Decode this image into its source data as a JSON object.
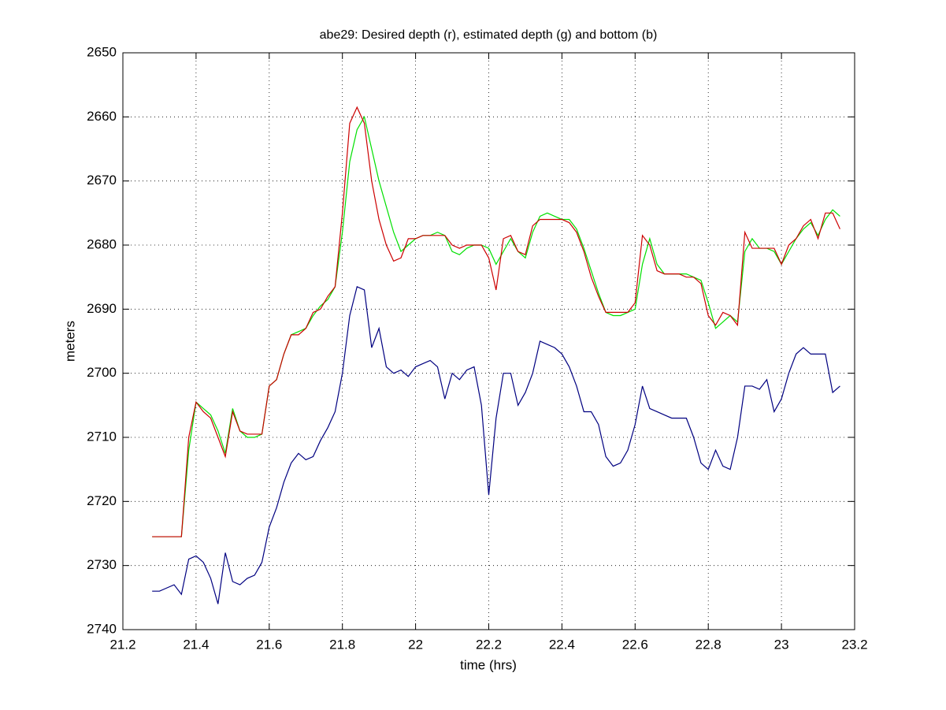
{
  "chart_data": {
    "type": "line",
    "title": "abe29: Desired depth (r), estimated depth (g) and bottom (b)",
    "x_label": "time (hrs)",
    "y_label": "meters",
    "xlim": [
      21.2,
      23.2
    ],
    "xticks": [
      21.2,
      21.4,
      21.6,
      21.8,
      22,
      22.2,
      22.4,
      22.6,
      22.8,
      23,
      23.2
    ],
    "ylim": [
      2740,
      2650
    ],
    "yticks": [
      2650,
      2660,
      2670,
      2680,
      2690,
      2700,
      2710,
      2720,
      2730,
      2740
    ],
    "grid": true,
    "x": [
      21.28,
      21.3,
      21.32,
      21.34,
      21.36,
      21.38,
      21.4,
      21.42,
      21.44,
      21.46,
      21.48,
      21.5,
      21.52,
      21.54,
      21.56,
      21.58,
      21.6,
      21.62,
      21.64,
      21.66,
      21.68,
      21.7,
      21.72,
      21.74,
      21.76,
      21.78,
      21.8,
      21.82,
      21.84,
      21.86,
      21.88,
      21.9,
      21.92,
      21.94,
      21.96,
      21.98,
      22,
      22.02,
      22.04,
      22.06,
      22.08,
      22.1,
      22.12,
      22.14,
      22.16,
      22.18,
      22.2,
      22.22,
      22.24,
      22.26,
      22.28,
      22.3,
      22.32,
      22.34,
      22.36,
      22.38,
      22.4,
      22.42,
      22.44,
      22.46,
      22.48,
      22.5,
      22.52,
      22.54,
      22.56,
      22.58,
      22.6,
      22.62,
      22.64,
      22.66,
      22.68,
      22.7,
      22.72,
      22.74,
      22.76,
      22.78,
      22.8,
      22.82,
      22.84,
      22.86,
      22.88,
      22.9,
      22.92,
      22.94,
      22.96,
      22.98,
      23,
      23.02,
      23.04,
      23.06,
      23.08,
      23.1,
      23.12,
      23.14,
      23.16
    ],
    "series": [
      {
        "color": "#000080",
        "values": [
          2734,
          2734,
          2733.5,
          2733,
          2734.5,
          2729,
          2728.5,
          2729.5,
          2732,
          2736,
          2728,
          2732.5,
          2733,
          2732,
          2731.5,
          2729.5,
          2724,
          2721,
          2717,
          2714,
          2712.5,
          2713.5,
          2713,
          2710.5,
          2708.5,
          2706,
          2700,
          2691,
          2686.5,
          2687,
          2696,
          2693,
          2699,
          2700,
          2699.5,
          2700.5,
          2699,
          2698.5,
          2698,
          2699,
          2704,
          2700,
          2701,
          2699.5,
          2699,
          2705,
          2719,
          2707,
          2700,
          2700,
          2705,
          2703,
          2700,
          2695,
          2695.5,
          2696,
          2697,
          2699,
          2702,
          2706,
          2706,
          2708,
          2713,
          2714.5,
          2714,
          2712,
          2708,
          2702,
          2705.5,
          2706,
          2706.5,
          2707,
          2707,
          2707,
          2710,
          2714,
          2715,
          2712,
          2714.5,
          2715,
          2710,
          2702,
          2702,
          2702.5,
          2701,
          2706,
          2704,
          2700,
          2697,
          2696,
          2697,
          2697,
          2697,
          2703,
          2702
        ]
      },
      {
        "color": "#00e000",
        "values": [
          2725.5,
          2725.5,
          2725.5,
          2725.5,
          2725.5,
          2712,
          2704.5,
          2705.5,
          2706.5,
          2709,
          2712.5,
          2705.5,
          2709,
          2710,
          2710,
          2709.5,
          2702,
          2701,
          2697,
          2694,
          2693.5,
          2693,
          2691,
          2689.5,
          2688.5,
          2686.5,
          2678,
          2667,
          2662,
          2660,
          2665,
          2670,
          2674,
          2678,
          2681,
          2680,
          2679,
          2678.5,
          2678.5,
          2678,
          2678.5,
          2681,
          2681.5,
          2680.5,
          2680,
          2680,
          2680.5,
          2683,
          2681,
          2679,
          2681,
          2682,
          2678,
          2675.5,
          2675,
          2675.5,
          2676,
          2676,
          2677.5,
          2680.5,
          2684,
          2687.5,
          2690.5,
          2691,
          2691,
          2690.5,
          2690,
          2683,
          2679,
          2683,
          2684.5,
          2684.5,
          2684.5,
          2684.5,
          2685,
          2685.5,
          2689,
          2693,
          2692,
          2691,
          2692,
          2681,
          2679,
          2680.5,
          2680.5,
          2681,
          2683,
          2681,
          2679,
          2677.5,
          2676.5,
          2678.5,
          2676,
          2674.5,
          2675.5
        ]
      },
      {
        "color": "#cc0000",
        "values": [
          2725.5,
          2725.5,
          2725.5,
          2725.5,
          2725.5,
          2710,
          2704.5,
          2706,
          2707,
          2710,
          2713,
          2706,
          2709,
          2709.5,
          2709.5,
          2709.5,
          2702,
          2701,
          2697,
          2694,
          2694,
          2693,
          2690.5,
          2690,
          2688,
          2686.5,
          2675,
          2661,
          2658.5,
          2661,
          2670,
          2676,
          2680,
          2682.5,
          2682,
          2679,
          2679,
          2678.5,
          2678.5,
          2678.5,
          2678.5,
          2680,
          2680.5,
          2680,
          2680,
          2680,
          2682,
          2687,
          2679,
          2678.5,
          2681,
          2681.5,
          2677,
          2676,
          2676,
          2676,
          2676,
          2676.5,
          2678,
          2681,
          2685,
          2688,
          2690.5,
          2690.5,
          2690.5,
          2690.5,
          2689,
          2678.5,
          2680,
          2684,
          2684.5,
          2684.5,
          2684.5,
          2685,
          2685,
          2686,
          2691,
          2692.5,
          2690.5,
          2691,
          2692.5,
          2678,
          2680.5,
          2680.5,
          2680.5,
          2680.5,
          2683,
          2680,
          2679,
          2677,
          2676,
          2679,
          2675,
          2675,
          2677.5
        ]
      }
    ]
  }
}
